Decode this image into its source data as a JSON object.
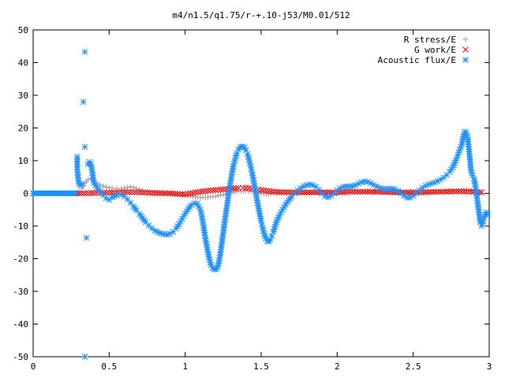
{
  "chart_data": {
    "type": "scatter",
    "title": "m4/n1.5/q1.75/r-+.10-j53/M0.01/512",
    "xlabel": "",
    "ylabel": "",
    "xlim": [
      0,
      3
    ],
    "ylim": [
      -50,
      50
    ],
    "x_ticks": [
      "0",
      "0.5",
      "1",
      "1.5",
      "2",
      "2.5",
      "3"
    ],
    "y_ticks": [
      "50",
      "40",
      "30",
      "20",
      "10",
      "0",
      "-10",
      "-20",
      "-30",
      "-40",
      "-50"
    ],
    "grid": false,
    "legend_position": "top-right",
    "series": [
      {
        "name": "R stress/E",
        "color": "#a0a0a0",
        "marker": "plus",
        "points": [
          [
            0.3,
            0.4
          ],
          [
            0.32,
            1.5
          ],
          [
            0.34,
            3.0
          ],
          [
            0.36,
            4.2
          ],
          [
            0.38,
            4.5
          ],
          [
            0.4,
            3.8
          ],
          [
            0.42,
            3.0
          ],
          [
            0.44,
            2.6
          ],
          [
            0.46,
            2.2
          ],
          [
            0.48,
            1.9
          ],
          [
            0.5,
            1.7
          ],
          [
            0.52,
            1.6
          ],
          [
            0.55,
            1.5
          ],
          [
            0.58,
            1.5
          ],
          [
            0.6,
            1.6
          ],
          [
            0.62,
            1.8
          ],
          [
            0.64,
            2.0
          ],
          [
            0.66,
            1.8
          ],
          [
            0.68,
            1.5
          ],
          [
            0.7,
            1.2
          ],
          [
            0.72,
            0.9
          ],
          [
            0.75,
            0.6
          ],
          [
            0.8,
            0.3
          ],
          [
            0.85,
            0.1
          ],
          [
            0.9,
            0.0
          ],
          [
            0.95,
            -0.3
          ],
          [
            1.0,
            -0.6
          ],
          [
            1.05,
            -1.0
          ],
          [
            1.1,
            -1.3
          ],
          [
            1.15,
            -1.2
          ],
          [
            1.2,
            -0.9
          ],
          [
            1.25,
            -0.4
          ],
          [
            1.3,
            0.2
          ],
          [
            1.35,
            0.6
          ],
          [
            1.4,
            0.8
          ],
          [
            1.45,
            0.5
          ],
          [
            1.5,
            0.0
          ],
          [
            1.55,
            -0.2
          ],
          [
            1.6,
            0.2
          ],
          [
            1.7,
            0.1
          ],
          [
            1.8,
            0.2
          ],
          [
            1.9,
            0.3
          ],
          [
            2.0,
            0.1
          ],
          [
            2.1,
            0.4
          ],
          [
            2.2,
            0.5
          ],
          [
            2.3,
            0.5
          ],
          [
            2.4,
            0.3
          ],
          [
            2.5,
            0.2
          ],
          [
            2.6,
            0.3
          ],
          [
            2.7,
            0.6
          ],
          [
            2.8,
            0.8
          ],
          [
            2.85,
            1.0
          ],
          [
            2.88,
            0.8
          ],
          [
            2.9,
            0.4
          ],
          [
            2.95,
            0.1
          ]
        ]
      },
      {
        "name": "G work/E",
        "color": "#ff0000",
        "marker": "cross",
        "points": [
          [
            0.3,
            0.0
          ],
          [
            0.4,
            0.1
          ],
          [
            0.5,
            0.2
          ],
          [
            0.6,
            0.4
          ],
          [
            0.7,
            0.3
          ],
          [
            0.8,
            0.1
          ],
          [
            0.9,
            0.0
          ],
          [
            0.95,
            -0.2
          ],
          [
            1.0,
            -0.3
          ],
          [
            1.05,
            0.1
          ],
          [
            1.1,
            0.5
          ],
          [
            1.15,
            0.8
          ],
          [
            1.2,
            1.0
          ],
          [
            1.25,
            1.2
          ],
          [
            1.3,
            1.4
          ],
          [
            1.35,
            1.6
          ],
          [
            1.38,
            1.7
          ],
          [
            1.42,
            1.6
          ],
          [
            1.46,
            1.3
          ],
          [
            1.5,
            1.0
          ],
          [
            1.55,
            0.7
          ],
          [
            1.6,
            0.4
          ],
          [
            1.7,
            0.3
          ],
          [
            1.8,
            0.3
          ],
          [
            1.9,
            0.3
          ],
          [
            2.0,
            0.3
          ],
          [
            2.1,
            0.5
          ],
          [
            2.2,
            0.5
          ],
          [
            2.3,
            0.4
          ],
          [
            2.4,
            0.3
          ],
          [
            2.5,
            0.3
          ],
          [
            2.6,
            0.4
          ],
          [
            2.7,
            0.5
          ],
          [
            2.8,
            0.6
          ],
          [
            2.9,
            0.5
          ],
          [
            2.95,
            0.3
          ]
        ]
      },
      {
        "name": "Acoustic flux/E",
        "color": "#1e90ff",
        "marker": "star",
        "points": [
          [
            0.29,
            11.2
          ],
          [
            0.29,
            7.3
          ],
          [
            0.3,
            3.0
          ],
          [
            0.31,
            2.5
          ],
          [
            0.32,
            2.8
          ],
          [
            0.33,
            28.0
          ],
          [
            0.34,
            43.3
          ],
          [
            0.34,
            14.2
          ],
          [
            0.35,
            -13.6
          ],
          [
            0.34,
            -50.0
          ],
          [
            0.36,
            8.9
          ],
          [
            0.37,
            9.6
          ],
          [
            0.38,
            9.0
          ],
          [
            0.39,
            6.2
          ],
          [
            0.4,
            3.2
          ],
          [
            0.42,
            1.8
          ],
          [
            0.44,
            0.5
          ],
          [
            0.46,
            -0.5
          ],
          [
            0.48,
            -1.5
          ],
          [
            0.5,
            -2.0
          ],
          [
            0.52,
            -1.2
          ],
          [
            0.55,
            -0.6
          ],
          [
            0.58,
            -0.4
          ],
          [
            0.6,
            -0.9
          ],
          [
            0.62,
            -1.8
          ],
          [
            0.64,
            -2.9
          ],
          [
            0.66,
            -4.0
          ],
          [
            0.68,
            -5.2
          ],
          [
            0.7,
            -6.3
          ],
          [
            0.72,
            -7.6
          ],
          [
            0.74,
            -8.8
          ],
          [
            0.76,
            -9.8
          ],
          [
            0.78,
            -10.7
          ],
          [
            0.8,
            -11.4
          ],
          [
            0.83,
            -12.1
          ],
          [
            0.86,
            -12.5
          ],
          [
            0.88,
            -12.6
          ],
          [
            0.9,
            -12.4
          ],
          [
            0.92,
            -11.8
          ],
          [
            0.94,
            -10.8
          ],
          [
            0.96,
            -9.4
          ],
          [
            0.98,
            -7.8
          ],
          [
            1.0,
            -6.2
          ],
          [
            1.02,
            -4.8
          ],
          [
            1.04,
            -3.6
          ],
          [
            1.06,
            -3.0
          ],
          [
            1.08,
            -3.2
          ],
          [
            1.1,
            -5.0
          ],
          [
            1.11,
            -7.0
          ],
          [
            1.12,
            -9.8
          ],
          [
            1.13,
            -12.8
          ],
          [
            1.14,
            -15.6
          ],
          [
            1.15,
            -18.0
          ],
          [
            1.16,
            -20.3
          ],
          [
            1.17,
            -21.9
          ],
          [
            1.18,
            -22.8
          ],
          [
            1.19,
            -23.2
          ],
          [
            1.2,
            -23.3
          ],
          [
            1.21,
            -23.0
          ],
          [
            1.22,
            -21.5
          ],
          [
            1.23,
            -18.8
          ],
          [
            1.24,
            -15.6
          ],
          [
            1.25,
            -12.2
          ],
          [
            1.26,
            -8.7
          ],
          [
            1.27,
            -5.3
          ],
          [
            1.28,
            -2.2
          ],
          [
            1.29,
            1.2
          ],
          [
            1.3,
            4.0
          ],
          [
            1.31,
            6.7
          ],
          [
            1.32,
            8.9
          ],
          [
            1.33,
            10.8
          ],
          [
            1.34,
            12.3
          ],
          [
            1.35,
            13.4
          ],
          [
            1.36,
            14.0
          ],
          [
            1.37,
            14.3
          ],
          [
            1.38,
            14.3
          ],
          [
            1.39,
            14.0
          ],
          [
            1.4,
            13.2
          ],
          [
            1.41,
            12.0
          ],
          [
            1.42,
            10.3
          ],
          [
            1.43,
            8.4
          ],
          [
            1.44,
            6.3
          ],
          [
            1.45,
            3.9
          ],
          [
            1.46,
            1.3
          ],
          [
            1.47,
            -1.3
          ],
          [
            1.48,
            -3.8
          ],
          [
            1.49,
            -6.2
          ],
          [
            1.5,
            -8.5
          ],
          [
            1.51,
            -10.6
          ],
          [
            1.52,
            -12.4
          ],
          [
            1.53,
            -13.8
          ],
          [
            1.54,
            -14.6
          ],
          [
            1.55,
            -14.7
          ],
          [
            1.56,
            -14.2
          ],
          [
            1.57,
            -13.1
          ],
          [
            1.58,
            -11.8
          ],
          [
            1.59,
            -10.3
          ],
          [
            1.6,
            -8.8
          ],
          [
            1.62,
            -6.7
          ],
          [
            1.64,
            -5.0
          ],
          [
            1.66,
            -3.5
          ],
          [
            1.68,
            -2.2
          ],
          [
            1.7,
            -1.0
          ],
          [
            1.72,
            0.0
          ],
          [
            1.74,
            0.9
          ],
          [
            1.76,
            1.6
          ],
          [
            1.78,
            2.2
          ],
          [
            1.8,
            2.5
          ],
          [
            1.82,
            2.7
          ],
          [
            1.84,
            2.5
          ],
          [
            1.86,
            2.0
          ],
          [
            1.88,
            1.1
          ],
          [
            1.9,
            0.0
          ],
          [
            1.92,
            -0.9
          ],
          [
            1.94,
            -1.2
          ],
          [
            1.96,
            -0.8
          ],
          [
            1.98,
            0.0
          ],
          [
            2.0,
            0.9
          ],
          [
            2.02,
            1.6
          ],
          [
            2.04,
            2.0
          ],
          [
            2.06,
            2.1
          ],
          [
            2.08,
            2.1
          ],
          [
            2.1,
            2.2
          ],
          [
            2.12,
            2.5
          ],
          [
            2.14,
            3.0
          ],
          [
            2.16,
            3.4
          ],
          [
            2.18,
            3.6
          ],
          [
            2.2,
            3.5
          ],
          [
            2.22,
            3.1
          ],
          [
            2.24,
            2.6
          ],
          [
            2.26,
            2.1
          ],
          [
            2.28,
            1.7
          ],
          [
            2.3,
            1.4
          ],
          [
            2.32,
            1.3
          ],
          [
            2.34,
            1.4
          ],
          [
            2.36,
            1.4
          ],
          [
            2.38,
            1.2
          ],
          [
            2.4,
            0.7
          ],
          [
            2.42,
            0.0
          ],
          [
            2.44,
            -0.8
          ],
          [
            2.46,
            -1.3
          ],
          [
            2.48,
            -1.3
          ],
          [
            2.5,
            -0.8
          ],
          [
            2.52,
            0.0
          ],
          [
            2.54,
            0.9
          ],
          [
            2.56,
            1.7
          ],
          [
            2.58,
            2.3
          ],
          [
            2.6,
            2.7
          ],
          [
            2.62,
            3.0
          ],
          [
            2.64,
            3.3
          ],
          [
            2.66,
            3.7
          ],
          [
            2.68,
            4.2
          ],
          [
            2.7,
            4.8
          ],
          [
            2.72,
            5.6
          ],
          [
            2.74,
            6.6
          ],
          [
            2.76,
            8.0
          ],
          [
            2.78,
            10.0
          ],
          [
            2.8,
            12.5
          ],
          [
            2.82,
            15.0
          ],
          [
            2.83,
            17.4
          ],
          [
            2.84,
            18.9
          ],
          [
            2.85,
            18.5
          ],
          [
            2.86,
            16.5
          ],
          [
            2.87,
            12.0
          ],
          [
            2.88,
            7.0
          ],
          [
            2.89,
            5.5
          ],
          [
            2.9,
            4.5
          ],
          [
            2.91,
            2.0
          ],
          [
            2.92,
            -1.5
          ],
          [
            2.93,
            -5.0
          ],
          [
            2.94,
            -8.8
          ],
          [
            2.95,
            -9.9
          ],
          [
            2.96,
            -8.5
          ],
          [
            2.97,
            -6.5
          ],
          [
            2.98,
            -5.8
          ],
          [
            2.99,
            -6.5
          ]
        ]
      }
    ]
  }
}
